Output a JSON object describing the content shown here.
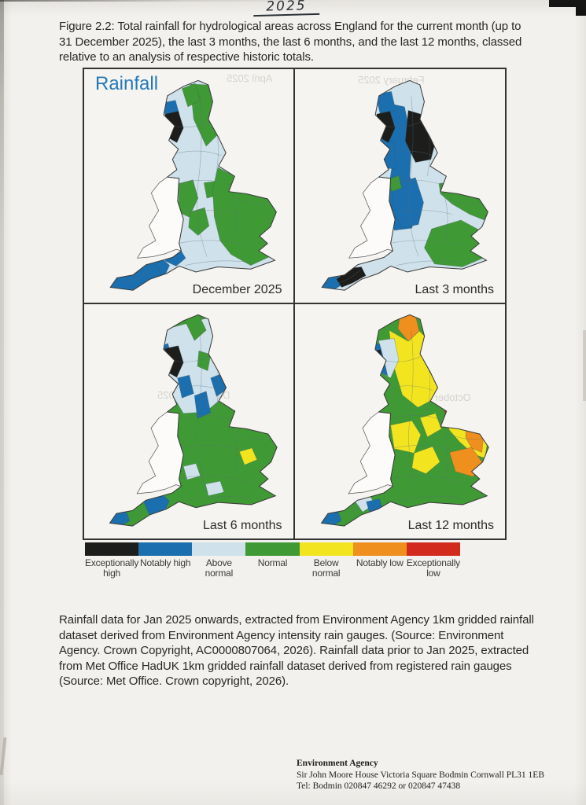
{
  "page": {
    "annotation": "2025",
    "caption": "Figure 2.2: Total rainfall for hydrological areas across England for the current month (up to 31 December 2025), the last 3 months, the last 6 months, and the last 12 months, classed relative to an analysis of respective historic totals.",
    "source_note": "Rainfall data for Jan 2025 onwards, extracted from Environment Agency 1km gridded rainfall dataset derived from Environment Agency intensity rain gauges. (Source: Environment Agency. Crown Copyright, AC0000807064, 2026). Rainfall data prior to Jan 2025, extracted from Met Office HadUK 1km gridded rainfall dataset derived from registered rain gauges (Source: Met Office. Crown copyright, 2026).",
    "bleedthrough": [
      "April 2025",
      "February 2025",
      "December 2025",
      "October 2025"
    ]
  },
  "figure": {
    "title": "Rainfall",
    "title_color": "#2479bb",
    "panels": [
      {
        "label": "December 2025",
        "base": "above_normal",
        "patches": [
          {
            "region": "northeast_band",
            "category": "normal"
          },
          {
            "region": "top_center_green",
            "category": "normal"
          },
          {
            "region": "welsh_border_green",
            "category": "normal"
          },
          {
            "region": "midlands_green1",
            "category": "normal"
          },
          {
            "region": "midlands_green2",
            "category": "normal"
          },
          {
            "region": "east_green_big",
            "category": "normal"
          },
          {
            "region": "somerset_blue_blob",
            "category": "notably_high"
          },
          {
            "region": "devon_blob",
            "category": "notably_high"
          },
          {
            "region": "cornwall_arm",
            "category": "notably_high"
          },
          {
            "region": "north_cumbria",
            "category": "notably_high"
          },
          {
            "region": "lake_district",
            "category": "exceptionally_high"
          }
        ]
      },
      {
        "label": "Last 3 months",
        "base": "above_normal",
        "patches": [
          {
            "region": "pennines_band",
            "category": "notably_high"
          },
          {
            "region": "south_midlands",
            "category": "notably_high"
          },
          {
            "region": "lancashire_coast",
            "category": "notably_high"
          },
          {
            "region": "nw_coast_top",
            "category": "notably_high"
          },
          {
            "region": "welsh_border_small",
            "category": "normal"
          },
          {
            "region": "east_anglia",
            "category": "normal"
          },
          {
            "region": "southeast",
            "category": "normal"
          },
          {
            "region": "yorkshire_moors",
            "category": "exceptionally_high"
          },
          {
            "region": "lake_district",
            "category": "exceptionally_high"
          },
          {
            "region": "cornwall_tip",
            "category": "notably_high"
          },
          {
            "region": "southwest_mid",
            "category": "exceptionally_high"
          }
        ]
      },
      {
        "label": "Last 6 months",
        "base": "normal",
        "patches": [
          {
            "region": "north_band",
            "category": "above_normal"
          },
          {
            "region": "green_top_west",
            "category": "normal"
          },
          {
            "region": "green_top_east",
            "category": "normal"
          },
          {
            "region": "north_pennines_blue",
            "category": "notably_high"
          },
          {
            "region": "yorkshire_dales_blue",
            "category": "notably_high"
          },
          {
            "region": "northeast_coast_blue",
            "category": "notably_high"
          },
          {
            "region": "cumbria_west",
            "category": "notably_high"
          },
          {
            "region": "lake_district",
            "category": "exceptionally_high"
          },
          {
            "region": "essex_small",
            "category": "below_normal"
          },
          {
            "region": "south_patch1",
            "category": "above_normal"
          },
          {
            "region": "south_patch2",
            "category": "above_normal"
          },
          {
            "region": "devon_blob",
            "category": "notably_high"
          },
          {
            "region": "cornwall_tip",
            "category": "notably_high"
          }
        ]
      },
      {
        "label": "Last 12 months",
        "base": "normal",
        "patches": [
          {
            "region": "yellow_northeast",
            "category": "below_normal"
          },
          {
            "region": "northumberland_orange",
            "category": "notably_low"
          },
          {
            "region": "midlands_yellow_w",
            "category": "below_normal"
          },
          {
            "region": "midlands_yellow_e",
            "category": "below_normal"
          },
          {
            "region": "midlands_yellow_n",
            "category": "below_normal"
          },
          {
            "region": "east_anglia_yellow",
            "category": "below_normal"
          },
          {
            "region": "essex_orange",
            "category": "notably_low"
          },
          {
            "region": "suffolk_coast_orange",
            "category": "notably_low"
          },
          {
            "region": "norfolk_red",
            "category": "exceptionally_low"
          },
          {
            "region": "cumbria_lightblue",
            "category": "above_normal"
          },
          {
            "region": "cumbria_west",
            "category": "notably_high"
          },
          {
            "region": "cumbria_black_small",
            "category": "exceptionally_high"
          },
          {
            "region": "devon_lightblue",
            "category": "above_normal"
          },
          {
            "region": "devon_south_blue",
            "category": "notably_high"
          },
          {
            "region": "cornwall_tip",
            "category": "notably_high"
          }
        ]
      }
    ]
  },
  "legend": {
    "items": [
      {
        "label": "Exceptionally high",
        "category": "exceptionally_high",
        "color": "#1d1d1b"
      },
      {
        "label": "Notably high",
        "category": "notably_high",
        "color": "#1b6fae"
      },
      {
        "label": "Above normal",
        "category": "above_normal",
        "color": "#cfe1ea"
      },
      {
        "label": "Normal",
        "category": "normal",
        "color": "#3f9a35"
      },
      {
        "label": "Below normal",
        "category": "below_normal",
        "color": "#f2e51f"
      },
      {
        "label": "Notably low",
        "category": "notably_low",
        "color": "#ee8f1e"
      },
      {
        "label": "Exceptionally low",
        "category": "exceptionally_low",
        "color": "#d22b1e"
      }
    ]
  },
  "footer": {
    "org": "Environment Agency",
    "address": "Sir John Moore House Victoria Square Bodmin Cornwall PL31 1EB",
    "tel": "Tel: Bodmin 020847 46292 or 020847 47438"
  }
}
